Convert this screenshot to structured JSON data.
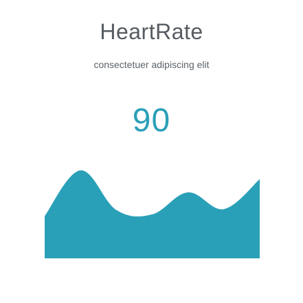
{
  "widget": {
    "title": "HeartRate",
    "subtitle": "consectetuer adipiscing elit",
    "value": "90"
  },
  "chart_data": {
    "type": "area",
    "x": [
      0,
      1,
      2,
      3,
      4,
      5,
      6
    ],
    "values": [
      0.48,
      1.0,
      0.55,
      0.5,
      0.75,
      0.56,
      0.9
    ],
    "ylim": [
      0,
      1
    ],
    "grid": false,
    "fill_color": "#2aa0b8"
  },
  "colors": {
    "title": "#555b61",
    "subtitle": "#5b6168",
    "accent": "#2aa0b8",
    "background": "#ffffff"
  }
}
